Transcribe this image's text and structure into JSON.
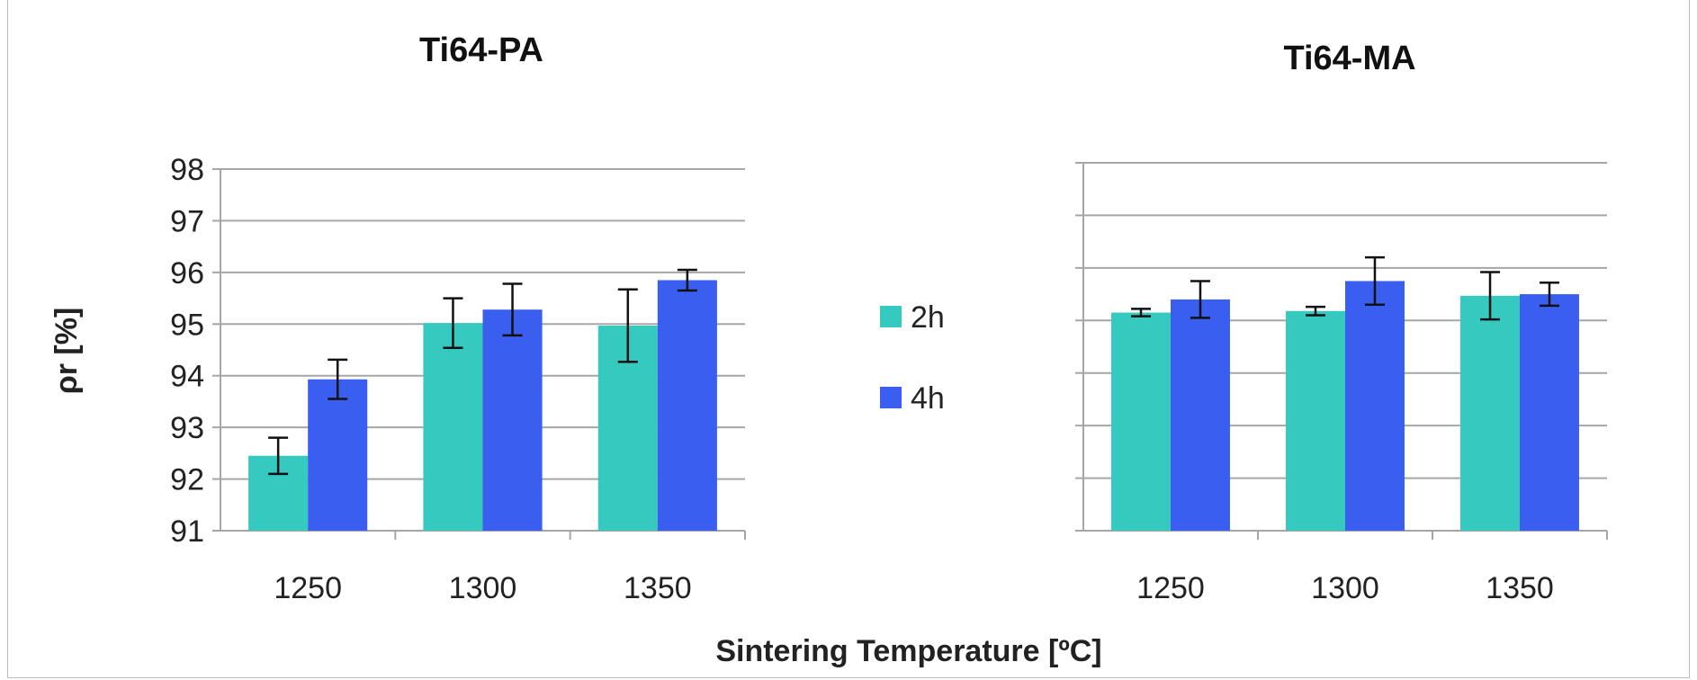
{
  "chart_data": [
    {
      "type": "bar",
      "title": "Ti64-PA",
      "ylabel": "ρr [%]",
      "xlabel": "Sintering Temperature [ºC]",
      "categories": [
        "1250",
        "1300",
        "1350"
      ],
      "ylim": [
        91,
        98
      ],
      "yticks": [
        "91",
        "92",
        "93",
        "94",
        "95",
        "96",
        "97",
        "98"
      ],
      "grid": true,
      "series": [
        {
          "name": "2h",
          "color": "#36c9c0",
          "values": [
            92.45,
            95.02,
            94.97
          ],
          "errors": [
            0.35,
            0.48,
            0.7
          ]
        },
        {
          "name": "4h",
          "color": "#3a5ff0",
          "values": [
            93.93,
            95.28,
            95.85
          ],
          "errors": [
            0.38,
            0.5,
            0.2
          ]
        }
      ]
    },
    {
      "type": "bar",
      "title": "Ti64-MA",
      "categories": [
        "1250",
        "1300",
        "1350"
      ],
      "ylim": [
        91,
        98
      ],
      "grid": true,
      "series": [
        {
          "name": "2h",
          "color": "#36c9c0",
          "values": [
            95.15,
            95.18,
            95.47
          ],
          "errors": [
            0.07,
            0.08,
            0.45
          ]
        },
        {
          "name": "4h",
          "color": "#3a5ff0",
          "values": [
            95.4,
            95.75,
            95.5
          ],
          "errors": [
            0.35,
            0.45,
            0.22
          ]
        }
      ]
    }
  ],
  "legend": {
    "position": "center",
    "items": [
      "2h",
      "4h"
    ]
  }
}
